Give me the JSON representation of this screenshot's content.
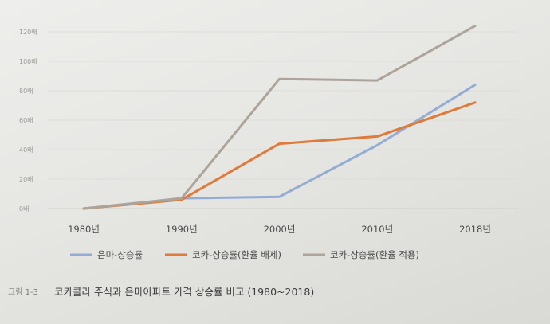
{
  "chart_data": {
    "type": "line",
    "categories": [
      "1980년",
      "1990년",
      "2000년",
      "2010년",
      "2018년"
    ],
    "yticks": [
      "0배",
      "20배",
      "40배",
      "60배",
      "80배",
      "100배",
      "120배"
    ],
    "ylim": [
      0,
      120
    ],
    "grid": true,
    "legend_position": "bottom",
    "series": [
      {
        "name": "은마-상승률",
        "color": "#93acd6",
        "values": [
          0,
          7,
          8,
          43,
          84
        ]
      },
      {
        "name": "코카-상승률(환율 배제)",
        "color": "#e07a3a",
        "values": [
          0,
          6,
          44,
          49,
          72
        ]
      },
      {
        "name": "코카-상승률(환율 적용)",
        "color": "#aca49a",
        "values": [
          0,
          7,
          88,
          87,
          124
        ]
      }
    ]
  },
  "caption": {
    "label": "그림 1-3",
    "text": "코카콜라 주식과 은마아파트 가격 상승률 비교 (1980~2018)"
  }
}
